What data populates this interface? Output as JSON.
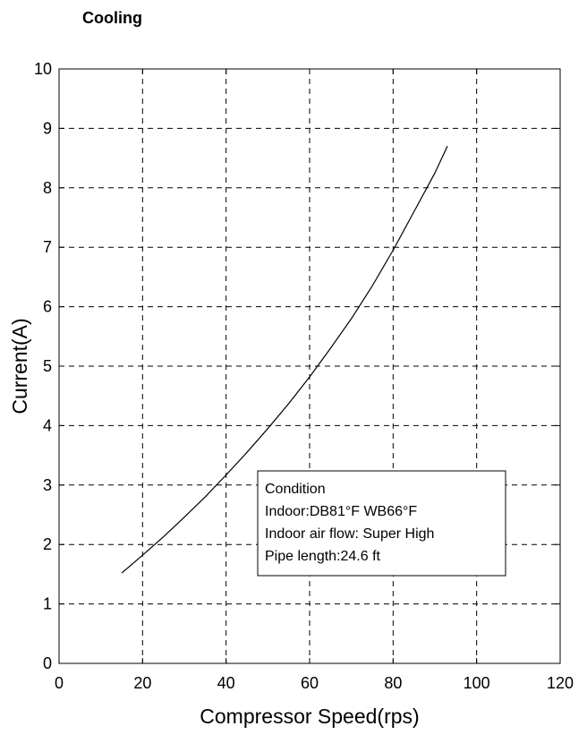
{
  "chart_data": {
    "type": "line",
    "title": "Cooling",
    "xlabel": "Compressor Speed(rps)",
    "ylabel": "Current(A)",
    "xlim": [
      0,
      120
    ],
    "ylim": [
      0,
      10
    ],
    "xticks": [
      0,
      20,
      40,
      60,
      80,
      100,
      120
    ],
    "yticks": [
      0,
      1,
      2,
      3,
      4,
      5,
      6,
      7,
      8,
      9,
      10
    ],
    "grid": true,
    "series": [
      {
        "x": [
          15,
          20,
          25,
          30,
          35,
          40,
          45,
          50,
          55,
          60,
          65,
          70,
          75,
          80,
          85,
          90,
          93
        ],
        "y": [
          1.52,
          1.82,
          2.13,
          2.46,
          2.8,
          3.17,
          3.55,
          3.95,
          4.37,
          4.82,
          5.3,
          5.8,
          6.35,
          6.95,
          7.6,
          8.25,
          8.7
        ]
      }
    ],
    "annotation": {
      "lines": [
        "Condition",
        "Indoor:DB81°F  WB66°F",
        "Indoor air flow: Super High",
        "Pipe length:24.6 ft"
      ]
    }
  }
}
